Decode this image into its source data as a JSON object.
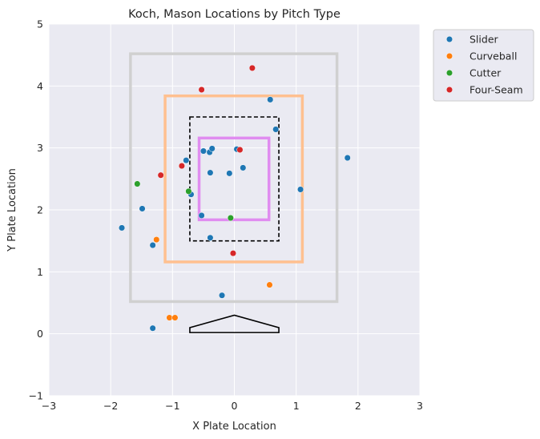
{
  "chart_data": {
    "type": "scatter",
    "title": "Koch, Mason Locations by Pitch Type",
    "xlabel": "X Plate Location",
    "ylabel": "Y Plate Location",
    "xlim": [
      -3,
      3
    ],
    "ylim": [
      -1,
      5
    ],
    "xticks": [
      -3,
      -2,
      -1,
      0,
      1,
      2,
      3
    ],
    "yticks": [
      -1,
      0,
      1,
      2,
      3,
      4,
      5
    ],
    "xtick_labels": [
      "−3",
      "−2",
      "−1",
      "0",
      "1",
      "2",
      "3"
    ],
    "ytick_labels": [
      "−1",
      "0",
      "1",
      "2",
      "3",
      "4",
      "5"
    ],
    "grid": true,
    "legend_placement": "outside-top-right",
    "background_color": "#eaeaf2",
    "zones": [
      {
        "x": [
          -1.68,
          1.66
        ],
        "y": [
          0.52,
          4.52
        ],
        "color": "#d0d0d0",
        "style": "solid"
      },
      {
        "x": [
          -1.12,
          1.1
        ],
        "y": [
          1.16,
          3.84
        ],
        "color": "#ffc090",
        "style": "solid"
      },
      {
        "x": [
          -0.72,
          0.72
        ],
        "y": [
          1.5,
          3.5
        ],
        "color": "#000000",
        "style": "dashed"
      },
      {
        "x": [
          -0.57,
          0.56
        ],
        "y": [
          1.84,
          3.16
        ],
        "color": "#e08cf0",
        "style": "solid"
      }
    ],
    "home_plate": [
      [
        -0.72,
        0.02
      ],
      [
        0.72,
        0.02
      ],
      [
        0.72,
        0.1
      ],
      [
        0.0,
        0.3
      ],
      [
        -0.72,
        0.1
      ]
    ],
    "series": [
      {
        "name": "Slider",
        "color": "#1f77b4",
        "x": [
          -1.82,
          -1.49,
          -1.32,
          -1.32,
          -0.78,
          -0.7,
          -0.53,
          -0.5,
          -0.4,
          -0.39,
          -0.39,
          -0.36,
          -0.2,
          -0.08,
          0.04,
          0.14,
          0.58,
          0.67,
          1.07,
          1.83
        ],
        "y": [
          1.71,
          2.02,
          1.43,
          0.09,
          2.8,
          2.25,
          1.91,
          2.95,
          2.93,
          2.6,
          1.55,
          2.99,
          0.62,
          2.59,
          2.98,
          2.68,
          3.78,
          3.3,
          2.33,
          2.84
        ]
      },
      {
        "name": "Curveball",
        "color": "#ff7f0e",
        "x": [
          -1.26,
          -1.05,
          -0.96,
          0.57
        ],
        "y": [
          1.52,
          0.26,
          0.26,
          0.79
        ]
      },
      {
        "name": "Cutter",
        "color": "#2ca02c",
        "x": [
          -1.57,
          -0.74,
          -0.06
        ],
        "y": [
          2.42,
          2.3,
          1.87
        ]
      },
      {
        "name": "Four-Seam",
        "color": "#d62728",
        "x": [
          -1.19,
          -0.85,
          -0.53,
          -0.02,
          0.09,
          0.29
        ],
        "y": [
          2.56,
          2.71,
          3.94,
          1.3,
          2.97,
          4.29
        ]
      }
    ]
  }
}
